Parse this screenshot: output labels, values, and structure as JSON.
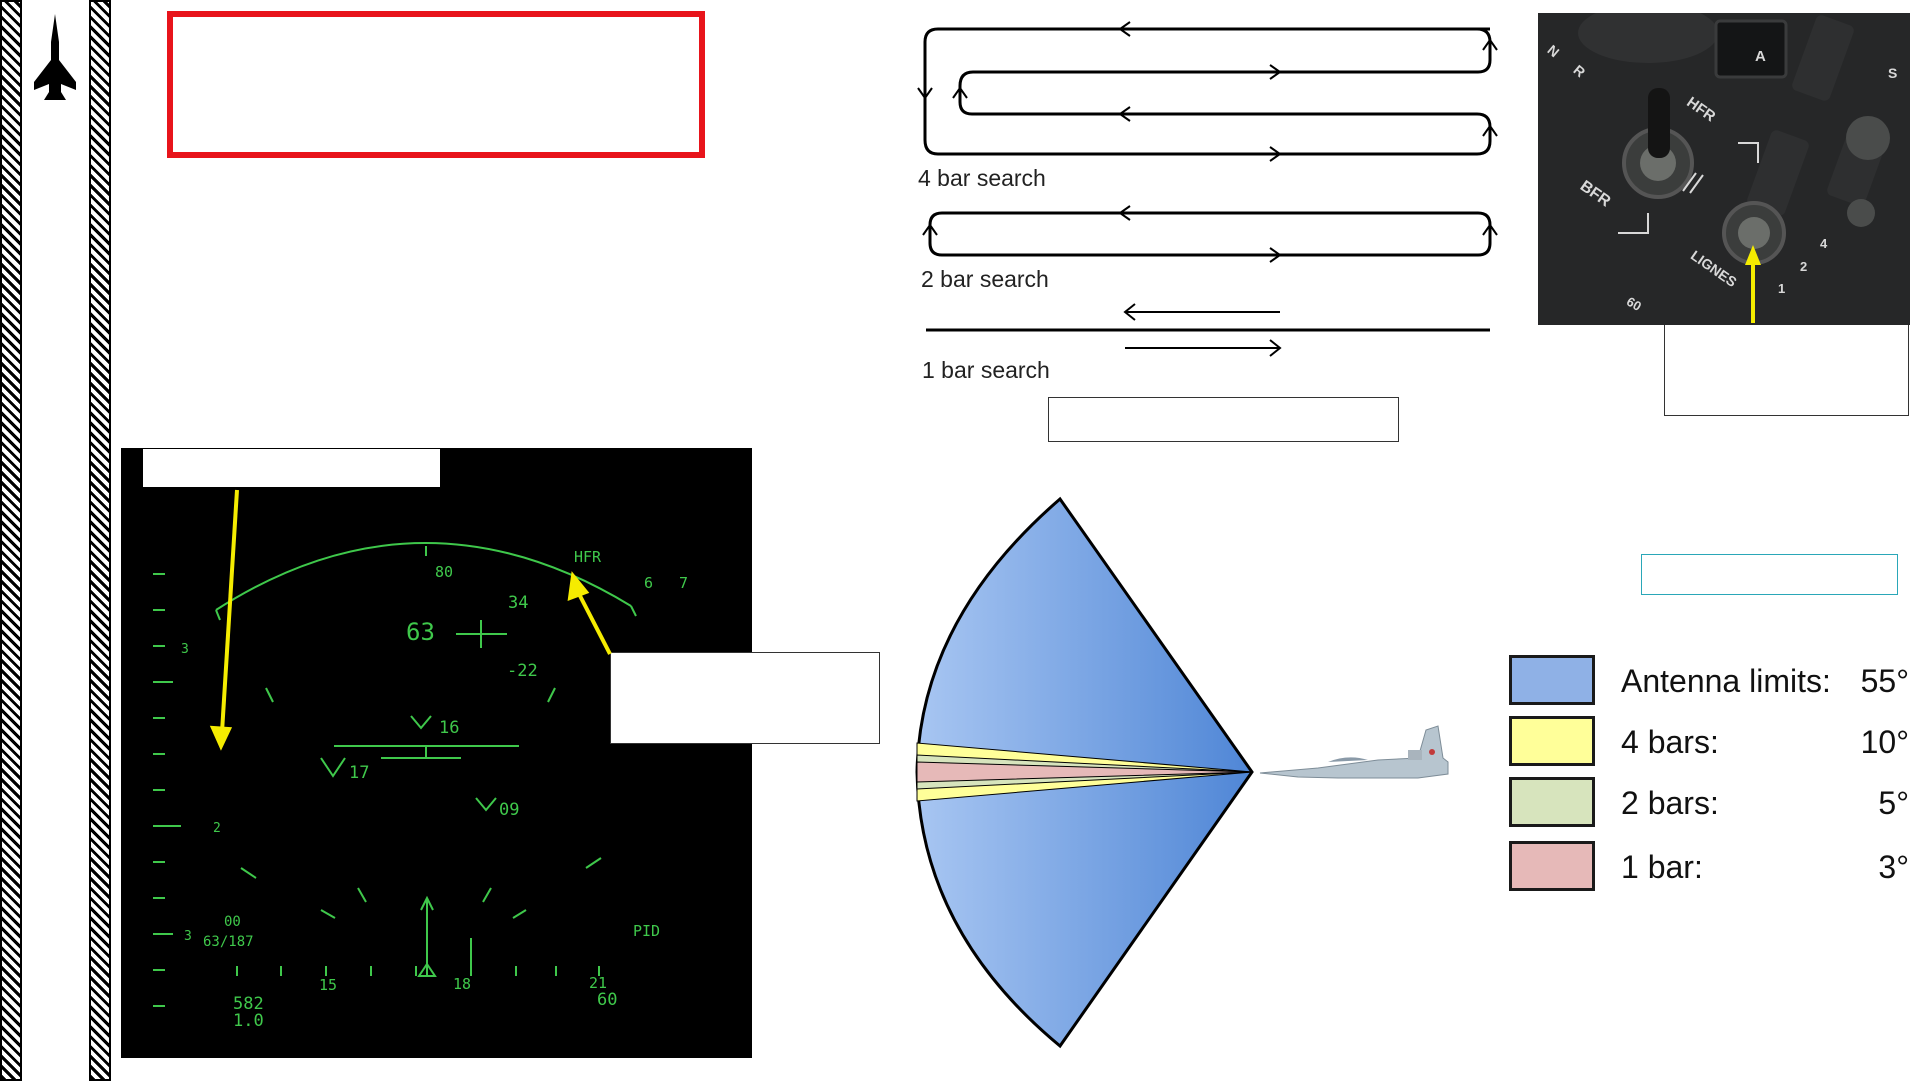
{
  "colors": {
    "red_box": "#e8141b",
    "radar_green": "#3fc84b",
    "arrow_yellow": "#f5ec00",
    "cone_blue": "#7aa3e0",
    "legend_teal_border": "#2aa7b8"
  },
  "sidebar": {
    "logo_icon": "aircraft-silhouette-icon"
  },
  "scan_patterns": {
    "four_bar": "4 bar search",
    "two_bar": "2 bar search",
    "one_bar": "1 bar search"
  },
  "radar_display": {
    "heading_scale": "80",
    "mode_label": "HFR",
    "scale_right_1": "6",
    "scale_right_2": "7",
    "range_value": "63",
    "altitude_upper": "34",
    "altitude_lower": "-22",
    "target_1": "16",
    "target_2": "17",
    "target_3": "09",
    "left_scale_upper": "3",
    "left_scale_lower": "3",
    "left_marker": "2",
    "bottom_left_top": "00",
    "bottom_left_bottom": "63/187",
    "pid_label": "PID",
    "tick_15": "15",
    "tick_18": "18",
    "tick_21": "21",
    "tick_60": "60",
    "speed": "582",
    "mach": "1.0"
  },
  "cockpit_panel": {
    "label_hfr": "HFR",
    "label_bfr": "BFR",
    "label_lignes": "LIGNES",
    "label_a": "A",
    "label_r": "R",
    "label_s": "S",
    "label_n": "N",
    "label_4": "4",
    "label_2": "2",
    "label_1": "1",
    "label_60": "60"
  },
  "legend": {
    "items": [
      {
        "label": "Antenna limits:",
        "value": "55°",
        "color": "#8fb1e6"
      },
      {
        "label": "4 bars:",
        "value": "10°",
        "color": "#ffff99"
      },
      {
        "label": "2 bars:",
        "value": "5°",
        "color": "#d7e4bd"
      },
      {
        "label": "1 bar:",
        "value": "3°",
        "color": "#e6b9b8"
      }
    ]
  }
}
